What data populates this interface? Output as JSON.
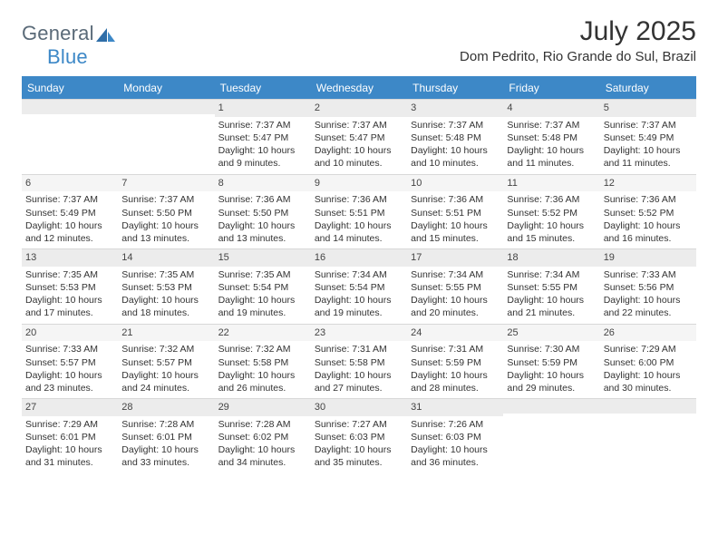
{
  "brand": {
    "part1": "General",
    "part2": "Blue",
    "logo_color": "#2f6ea8"
  },
  "header": {
    "month_title": "July 2025",
    "location": "Dom Pedrito, Rio Grande do Sul, Brazil"
  },
  "colors": {
    "header_bar": "#3d88c7",
    "daynum_bg": "#ececec",
    "daynum_bg_alt": "#f5f5f5",
    "text": "#333333",
    "white": "#ffffff"
  },
  "days_of_week": [
    "Sunday",
    "Monday",
    "Tuesday",
    "Wednesday",
    "Thursday",
    "Friday",
    "Saturday"
  ],
  "weeks": [
    [
      {
        "empty": true
      },
      {
        "empty": true
      },
      {
        "num": "1",
        "sunrise": "7:37 AM",
        "sunset": "5:47 PM",
        "daylight": "10 hours and 9 minutes."
      },
      {
        "num": "2",
        "sunrise": "7:37 AM",
        "sunset": "5:47 PM",
        "daylight": "10 hours and 10 minutes."
      },
      {
        "num": "3",
        "sunrise": "7:37 AM",
        "sunset": "5:48 PM",
        "daylight": "10 hours and 10 minutes."
      },
      {
        "num": "4",
        "sunrise": "7:37 AM",
        "sunset": "5:48 PM",
        "daylight": "10 hours and 11 minutes."
      },
      {
        "num": "5",
        "sunrise": "7:37 AM",
        "sunset": "5:49 PM",
        "daylight": "10 hours and 11 minutes."
      }
    ],
    [
      {
        "num": "6",
        "sunrise": "7:37 AM",
        "sunset": "5:49 PM",
        "daylight": "10 hours and 12 minutes."
      },
      {
        "num": "7",
        "sunrise": "7:37 AM",
        "sunset": "5:50 PM",
        "daylight": "10 hours and 13 minutes."
      },
      {
        "num": "8",
        "sunrise": "7:36 AM",
        "sunset": "5:50 PM",
        "daylight": "10 hours and 13 minutes."
      },
      {
        "num": "9",
        "sunrise": "7:36 AM",
        "sunset": "5:51 PM",
        "daylight": "10 hours and 14 minutes."
      },
      {
        "num": "10",
        "sunrise": "7:36 AM",
        "sunset": "5:51 PM",
        "daylight": "10 hours and 15 minutes."
      },
      {
        "num": "11",
        "sunrise": "7:36 AM",
        "sunset": "5:52 PM",
        "daylight": "10 hours and 15 minutes."
      },
      {
        "num": "12",
        "sunrise": "7:36 AM",
        "sunset": "5:52 PM",
        "daylight": "10 hours and 16 minutes."
      }
    ],
    [
      {
        "num": "13",
        "sunrise": "7:35 AM",
        "sunset": "5:53 PM",
        "daylight": "10 hours and 17 minutes."
      },
      {
        "num": "14",
        "sunrise": "7:35 AM",
        "sunset": "5:53 PM",
        "daylight": "10 hours and 18 minutes."
      },
      {
        "num": "15",
        "sunrise": "7:35 AM",
        "sunset": "5:54 PM",
        "daylight": "10 hours and 19 minutes."
      },
      {
        "num": "16",
        "sunrise": "7:34 AM",
        "sunset": "5:54 PM",
        "daylight": "10 hours and 19 minutes."
      },
      {
        "num": "17",
        "sunrise": "7:34 AM",
        "sunset": "5:55 PM",
        "daylight": "10 hours and 20 minutes."
      },
      {
        "num": "18",
        "sunrise": "7:34 AM",
        "sunset": "5:55 PM",
        "daylight": "10 hours and 21 minutes."
      },
      {
        "num": "19",
        "sunrise": "7:33 AM",
        "sunset": "5:56 PM",
        "daylight": "10 hours and 22 minutes."
      }
    ],
    [
      {
        "num": "20",
        "sunrise": "7:33 AM",
        "sunset": "5:57 PM",
        "daylight": "10 hours and 23 minutes."
      },
      {
        "num": "21",
        "sunrise": "7:32 AM",
        "sunset": "5:57 PM",
        "daylight": "10 hours and 24 minutes."
      },
      {
        "num": "22",
        "sunrise": "7:32 AM",
        "sunset": "5:58 PM",
        "daylight": "10 hours and 26 minutes."
      },
      {
        "num": "23",
        "sunrise": "7:31 AM",
        "sunset": "5:58 PM",
        "daylight": "10 hours and 27 minutes."
      },
      {
        "num": "24",
        "sunrise": "7:31 AM",
        "sunset": "5:59 PM",
        "daylight": "10 hours and 28 minutes."
      },
      {
        "num": "25",
        "sunrise": "7:30 AM",
        "sunset": "5:59 PM",
        "daylight": "10 hours and 29 minutes."
      },
      {
        "num": "26",
        "sunrise": "7:29 AM",
        "sunset": "6:00 PM",
        "daylight": "10 hours and 30 minutes."
      }
    ],
    [
      {
        "num": "27",
        "sunrise": "7:29 AM",
        "sunset": "6:01 PM",
        "daylight": "10 hours and 31 minutes."
      },
      {
        "num": "28",
        "sunrise": "7:28 AM",
        "sunset": "6:01 PM",
        "daylight": "10 hours and 33 minutes."
      },
      {
        "num": "29",
        "sunrise": "7:28 AM",
        "sunset": "6:02 PM",
        "daylight": "10 hours and 34 minutes."
      },
      {
        "num": "30",
        "sunrise": "7:27 AM",
        "sunset": "6:03 PM",
        "daylight": "10 hours and 35 minutes."
      },
      {
        "num": "31",
        "sunrise": "7:26 AM",
        "sunset": "6:03 PM",
        "daylight": "10 hours and 36 minutes."
      },
      {
        "empty": true
      },
      {
        "empty": true
      }
    ]
  ],
  "labels": {
    "sunrise": "Sunrise:",
    "sunset": "Sunset:",
    "daylight": "Daylight:"
  }
}
